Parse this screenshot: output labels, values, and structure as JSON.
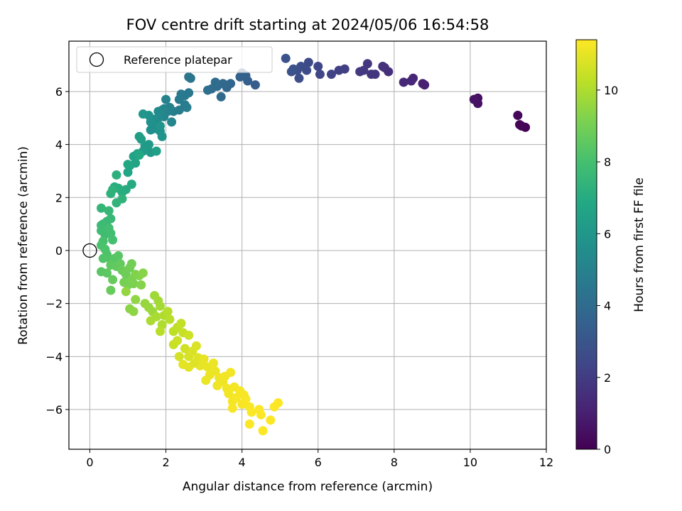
{
  "chart_data": {
    "type": "scatter",
    "title": "FOV centre drift starting at 2024/05/06 16:54:58",
    "xlabel": "Angular distance from reference (arcmin)",
    "ylabel": "Rotation from reference (arcmin)",
    "xlim": [
      -0.55,
      12
    ],
    "ylim": [
      -7.5,
      7.9
    ],
    "xticks": [
      0,
      2,
      4,
      6,
      8,
      10,
      12
    ],
    "yticks": [
      -6,
      -4,
      -2,
      0,
      2,
      4,
      6
    ],
    "grid": true,
    "legend": {
      "placement": "top-left",
      "entries": [
        "Reference platepar"
      ]
    },
    "reference_point": {
      "x": 0,
      "y": 0,
      "marker": "open-circle"
    },
    "colorbar": {
      "label": "Hours from first FF file",
      "range": [
        0,
        11.4
      ],
      "ticks": [
        0,
        2,
        4,
        6,
        8,
        10
      ],
      "colormap": "viridis"
    },
    "points": [
      {
        "x": 11.45,
        "y": 4.65,
        "c": 0.05
      },
      {
        "x": 11.35,
        "y": 4.7,
        "c": 0.1
      },
      {
        "x": 11.3,
        "y": 4.75,
        "c": 0.15
      },
      {
        "x": 11.25,
        "y": 5.1,
        "c": 0.2
      },
      {
        "x": 10.2,
        "y": 5.75,
        "c": 0.5
      },
      {
        "x": 10.2,
        "y": 5.55,
        "c": 0.55
      },
      {
        "x": 10.1,
        "y": 5.7,
        "c": 0.6
      },
      {
        "x": 8.8,
        "y": 6.25,
        "c": 1.0
      },
      {
        "x": 8.75,
        "y": 6.3,
        "c": 1.05
      },
      {
        "x": 8.5,
        "y": 6.5,
        "c": 1.2
      },
      {
        "x": 8.45,
        "y": 6.4,
        "c": 1.25
      },
      {
        "x": 8.25,
        "y": 6.35,
        "c": 1.3
      },
      {
        "x": 7.85,
        "y": 6.75,
        "c": 1.5
      },
      {
        "x": 7.75,
        "y": 6.9,
        "c": 1.55
      },
      {
        "x": 7.7,
        "y": 6.95,
        "c": 1.6
      },
      {
        "x": 7.5,
        "y": 6.65,
        "c": 1.7
      },
      {
        "x": 7.4,
        "y": 6.65,
        "c": 1.75
      },
      {
        "x": 7.3,
        "y": 7.05,
        "c": 1.8
      },
      {
        "x": 7.2,
        "y": 6.8,
        "c": 1.85
      },
      {
        "x": 7.1,
        "y": 6.75,
        "c": 1.9
      },
      {
        "x": 6.7,
        "y": 6.85,
        "c": 2.1
      },
      {
        "x": 6.55,
        "y": 6.8,
        "c": 2.15
      },
      {
        "x": 6.35,
        "y": 6.65,
        "c": 2.25
      },
      {
        "x": 6.05,
        "y": 6.65,
        "c": 2.35
      },
      {
        "x": 6.0,
        "y": 6.95,
        "c": 2.4
      },
      {
        "x": 5.75,
        "y": 7.1,
        "c": 2.55
      },
      {
        "x": 5.7,
        "y": 6.8,
        "c": 2.6
      },
      {
        "x": 5.55,
        "y": 6.95,
        "c": 2.65
      },
      {
        "x": 5.5,
        "y": 6.5,
        "c": 2.7
      },
      {
        "x": 5.45,
        "y": 6.8,
        "c": 2.75
      },
      {
        "x": 5.35,
        "y": 6.85,
        "c": 2.8
      },
      {
        "x": 5.3,
        "y": 6.75,
        "c": 2.85
      },
      {
        "x": 5.15,
        "y": 7.25,
        "c": 2.9
      },
      {
        "x": 4.35,
        "y": 6.25,
        "c": 3.3
      },
      {
        "x": 4.15,
        "y": 6.4,
        "c": 3.4
      },
      {
        "x": 4.1,
        "y": 6.6,
        "c": 3.45
      },
      {
        "x": 4.0,
        "y": 6.7,
        "c": 3.5
      },
      {
        "x": 3.95,
        "y": 6.55,
        "c": 3.55
      },
      {
        "x": 3.7,
        "y": 6.3,
        "c": 3.75
      },
      {
        "x": 3.6,
        "y": 6.15,
        "c": 3.8
      },
      {
        "x": 3.5,
        "y": 6.3,
        "c": 3.85
      },
      {
        "x": 3.45,
        "y": 5.8,
        "c": 3.9
      },
      {
        "x": 3.35,
        "y": 6.2,
        "c": 3.95
      },
      {
        "x": 3.3,
        "y": 6.35,
        "c": 4.0
      },
      {
        "x": 3.2,
        "y": 6.1,
        "c": 4.05
      },
      {
        "x": 3.1,
        "y": 6.05,
        "c": 4.1
      },
      {
        "x": 2.65,
        "y": 6.5,
        "c": 4.4
      },
      {
        "x": 2.6,
        "y": 6.55,
        "c": 4.45
      },
      {
        "x": 2.6,
        "y": 5.95,
        "c": 4.5
      },
      {
        "x": 2.5,
        "y": 5.85,
        "c": 4.55
      },
      {
        "x": 2.4,
        "y": 5.9,
        "c": 4.6
      },
      {
        "x": 2.35,
        "y": 5.7,
        "c": 4.65
      },
      {
        "x": 2.35,
        "y": 5.3,
        "c": 4.7
      },
      {
        "x": 2.5,
        "y": 5.5,
        "c": 4.75
      },
      {
        "x": 2.55,
        "y": 5.4,
        "c": 4.8
      },
      {
        "x": 2.2,
        "y": 5.25,
        "c": 4.9
      },
      {
        "x": 2.1,
        "y": 5.4,
        "c": 4.95
      },
      {
        "x": 2.05,
        "y": 5.25,
        "c": 5.0
      },
      {
        "x": 2.0,
        "y": 5.7,
        "c": 5.05
      },
      {
        "x": 1.95,
        "y": 5.35,
        "c": 5.1
      },
      {
        "x": 1.95,
        "y": 5.05,
        "c": 5.15
      },
      {
        "x": 1.9,
        "y": 5.3,
        "c": 5.2
      },
      {
        "x": 2.15,
        "y": 4.85,
        "c": 5.25
      },
      {
        "x": 1.8,
        "y": 5.25,
        "c": 5.35
      },
      {
        "x": 1.8,
        "y": 5.0,
        "c": 5.4
      },
      {
        "x": 1.75,
        "y": 4.8,
        "c": 5.45
      },
      {
        "x": 1.7,
        "y": 4.6,
        "c": 5.5
      },
      {
        "x": 1.7,
        "y": 4.95,
        "c": 5.55
      },
      {
        "x": 1.65,
        "y": 4.75,
        "c": 5.6
      },
      {
        "x": 1.6,
        "y": 4.55,
        "c": 5.65
      },
      {
        "x": 1.6,
        "y": 4.85,
        "c": 5.7
      },
      {
        "x": 1.55,
        "y": 5.1,
        "c": 5.75
      },
      {
        "x": 1.85,
        "y": 4.5,
        "c": 5.8
      },
      {
        "x": 1.9,
        "y": 4.3,
        "c": 5.85
      },
      {
        "x": 1.85,
        "y": 4.7,
        "c": 5.9
      },
      {
        "x": 1.4,
        "y": 5.15,
        "c": 5.95
      },
      {
        "x": 1.6,
        "y": 3.7,
        "c": 6.1
      },
      {
        "x": 1.55,
        "y": 4.0,
        "c": 6.15
      },
      {
        "x": 1.45,
        "y": 3.95,
        "c": 6.2
      },
      {
        "x": 1.4,
        "y": 3.75,
        "c": 6.25
      },
      {
        "x": 1.35,
        "y": 4.2,
        "c": 6.3
      },
      {
        "x": 1.3,
        "y": 4.3,
        "c": 6.35
      },
      {
        "x": 1.75,
        "y": 3.75,
        "c": 6.4
      },
      {
        "x": 1.25,
        "y": 3.65,
        "c": 6.55
      },
      {
        "x": 1.15,
        "y": 3.55,
        "c": 6.6
      },
      {
        "x": 1.2,
        "y": 3.3,
        "c": 6.65
      },
      {
        "x": 1.05,
        "y": 3.2,
        "c": 6.7
      },
      {
        "x": 1.0,
        "y": 2.95,
        "c": 6.75
      },
      {
        "x": 1.0,
        "y": 3.25,
        "c": 6.8
      },
      {
        "x": 1.3,
        "y": 3.6,
        "c": 6.85
      },
      {
        "x": 1.1,
        "y": 2.5,
        "c": 6.95
      },
      {
        "x": 0.95,
        "y": 2.3,
        "c": 7.0
      },
      {
        "x": 0.85,
        "y": 2.2,
        "c": 7.05
      },
      {
        "x": 0.75,
        "y": 2.35,
        "c": 7.1
      },
      {
        "x": 0.65,
        "y": 2.4,
        "c": 7.15
      },
      {
        "x": 0.7,
        "y": 2.85,
        "c": 7.2
      },
      {
        "x": 0.55,
        "y": 2.15,
        "c": 7.25
      },
      {
        "x": 0.6,
        "y": 2.3,
        "c": 7.3
      },
      {
        "x": 0.85,
        "y": 1.95,
        "c": 7.35
      },
      {
        "x": 0.7,
        "y": 1.8,
        "c": 7.4
      },
      {
        "x": 0.3,
        "y": 1.6,
        "c": 7.5
      },
      {
        "x": 0.5,
        "y": 1.5,
        "c": 7.55
      },
      {
        "x": 0.55,
        "y": 1.2,
        "c": 7.6
      },
      {
        "x": 0.45,
        "y": 1.1,
        "c": 7.65
      },
      {
        "x": 0.35,
        "y": 1.0,
        "c": 7.7
      },
      {
        "x": 0.3,
        "y": 0.95,
        "c": 7.75
      },
      {
        "x": 0.3,
        "y": 0.75,
        "c": 7.8
      },
      {
        "x": 0.4,
        "y": 0.6,
        "c": 7.85
      },
      {
        "x": 0.5,
        "y": 0.85,
        "c": 7.9
      },
      {
        "x": 0.55,
        "y": 0.65,
        "c": 7.95
      },
      {
        "x": 0.6,
        "y": 0.4,
        "c": 8.0
      },
      {
        "x": 0.35,
        "y": 0.35,
        "c": 8.05
      },
      {
        "x": 0.3,
        "y": 0.2,
        "c": 8.1
      },
      {
        "x": 0.4,
        "y": 0.05,
        "c": 8.15
      },
      {
        "x": 0.45,
        "y": -0.15,
        "c": 8.2
      },
      {
        "x": 0.35,
        "y": -0.3,
        "c": 8.25
      },
      {
        "x": 0.55,
        "y": -0.35,
        "c": 8.3
      },
      {
        "x": 0.65,
        "y": -0.3,
        "c": 8.35
      },
      {
        "x": 0.75,
        "y": -0.2,
        "c": 8.4
      },
      {
        "x": 0.3,
        "y": -0.8,
        "c": 8.45
      },
      {
        "x": 0.45,
        "y": -0.85,
        "c": 8.5
      },
      {
        "x": 0.55,
        "y": -0.55,
        "c": 8.55
      },
      {
        "x": 0.7,
        "y": -0.6,
        "c": 8.6
      },
      {
        "x": 0.8,
        "y": -0.5,
        "c": 8.65
      },
      {
        "x": 0.6,
        "y": -1.1,
        "c": 8.7
      },
      {
        "x": 0.55,
        "y": -1.5,
        "c": 8.75
      },
      {
        "x": 0.85,
        "y": -0.75,
        "c": 8.8
      },
      {
        "x": 0.95,
        "y": -0.9,
        "c": 8.85
      },
      {
        "x": 1.05,
        "y": -0.65,
        "c": 8.9
      },
      {
        "x": 1.1,
        "y": -0.5,
        "c": 8.95
      },
      {
        "x": 0.9,
        "y": -1.2,
        "c": 9.0
      },
      {
        "x": 1.0,
        "y": -1.3,
        "c": 9.05
      },
      {
        "x": 1.1,
        "y": -1.1,
        "c": 9.1
      },
      {
        "x": 1.15,
        "y": -1.25,
        "c": 9.15
      },
      {
        "x": 1.2,
        "y": -0.9,
        "c": 9.2
      },
      {
        "x": 1.3,
        "y": -0.95,
        "c": 9.25
      },
      {
        "x": 1.35,
        "y": -1.3,
        "c": 9.3
      },
      {
        "x": 1.4,
        "y": -0.85,
        "c": 9.35
      },
      {
        "x": 1.05,
        "y": -2.2,
        "c": 9.4
      },
      {
        "x": 1.15,
        "y": -2.3,
        "c": 9.45
      },
      {
        "x": 1.2,
        "y": -1.85,
        "c": 9.5
      },
      {
        "x": 0.95,
        "y": -1.55,
        "c": 9.55
      },
      {
        "x": 1.45,
        "y": -2.0,
        "c": 9.6
      },
      {
        "x": 1.55,
        "y": -2.15,
        "c": 9.65
      },
      {
        "x": 1.65,
        "y": -2.3,
        "c": 9.7
      },
      {
        "x": 1.7,
        "y": -1.7,
        "c": 9.75
      },
      {
        "x": 1.8,
        "y": -1.9,
        "c": 9.8
      },
      {
        "x": 1.85,
        "y": -2.1,
        "c": 9.85
      },
      {
        "x": 1.75,
        "y": -2.5,
        "c": 9.9
      },
      {
        "x": 1.6,
        "y": -2.65,
        "c": 9.95
      },
      {
        "x": 1.9,
        "y": -2.8,
        "c": 10.0
      },
      {
        "x": 1.95,
        "y": -2.45,
        "c": 10.05
      },
      {
        "x": 2.05,
        "y": -2.3,
        "c": 10.1
      },
      {
        "x": 2.1,
        "y": -2.6,
        "c": 10.15
      },
      {
        "x": 1.85,
        "y": -3.05,
        "c": 10.2
      },
      {
        "x": 2.2,
        "y": -3.05,
        "c": 10.25
      },
      {
        "x": 2.3,
        "y": -2.9,
        "c": 10.3
      },
      {
        "x": 2.4,
        "y": -2.75,
        "c": 10.35
      },
      {
        "x": 2.45,
        "y": -3.1,
        "c": 10.4
      },
      {
        "x": 2.2,
        "y": -3.55,
        "c": 10.45
      },
      {
        "x": 2.3,
        "y": -3.4,
        "c": 10.5
      },
      {
        "x": 2.6,
        "y": -3.2,
        "c": 10.55
      },
      {
        "x": 2.5,
        "y": -3.7,
        "c": 10.6
      },
      {
        "x": 2.35,
        "y": -4.0,
        "c": 10.65
      },
      {
        "x": 2.6,
        "y": -4.0,
        "c": 10.7
      },
      {
        "x": 2.7,
        "y": -3.8,
        "c": 10.75
      },
      {
        "x": 2.8,
        "y": -3.6,
        "c": 10.8
      },
      {
        "x": 2.85,
        "y": -4.05,
        "c": 10.85
      },
      {
        "x": 2.6,
        "y": -4.4,
        "c": 10.9
      },
      {
        "x": 2.45,
        "y": -4.3,
        "c": 10.95
      },
      {
        "x": 2.9,
        "y": -4.35,
        "c": 11.0
      },
      {
        "x": 3.0,
        "y": -4.1,
        "c": 11.02
      },
      {
        "x": 3.1,
        "y": -4.4,
        "c": 11.05
      },
      {
        "x": 3.15,
        "y": -4.7,
        "c": 11.08
      },
      {
        "x": 3.3,
        "y": -4.55,
        "c": 11.1
      },
      {
        "x": 3.4,
        "y": -4.8,
        "c": 11.12
      },
      {
        "x": 3.35,
        "y": -5.1,
        "c": 11.14
      },
      {
        "x": 3.5,
        "y": -4.95,
        "c": 11.16
      },
      {
        "x": 3.6,
        "y": -5.2,
        "c": 11.18
      },
      {
        "x": 3.7,
        "y": -4.6,
        "c": 11.2
      },
      {
        "x": 3.65,
        "y": -5.4,
        "c": 11.22
      },
      {
        "x": 3.8,
        "y": -5.15,
        "c": 11.24
      },
      {
        "x": 3.75,
        "y": -5.7,
        "c": 11.26
      },
      {
        "x": 3.85,
        "y": -5.55,
        "c": 11.28
      },
      {
        "x": 3.95,
        "y": -5.3,
        "c": 11.3
      },
      {
        "x": 4.0,
        "y": -5.8,
        "c": 11.31
      },
      {
        "x": 4.1,
        "y": -5.6,
        "c": 11.32
      },
      {
        "x": 4.2,
        "y": -5.9,
        "c": 11.33
      },
      {
        "x": 4.25,
        "y": -6.1,
        "c": 11.34
      },
      {
        "x": 4.2,
        "y": -6.55,
        "c": 11.35
      },
      {
        "x": 4.45,
        "y": -6.0,
        "c": 11.36
      },
      {
        "x": 4.5,
        "y": -6.2,
        "c": 11.37
      },
      {
        "x": 4.55,
        "y": -6.8,
        "c": 11.38
      },
      {
        "x": 4.75,
        "y": -6.4,
        "c": 11.39
      },
      {
        "x": 4.85,
        "y": -5.9,
        "c": 11.39
      },
      {
        "x": 4.95,
        "y": -5.75,
        "c": 11.4
      },
      {
        "x": 3.75,
        "y": -5.95,
        "c": 11.3
      },
      {
        "x": 3.05,
        "y": -4.9,
        "c": 11.06
      },
      {
        "x": 2.75,
        "y": -4.25,
        "c": 10.88
      },
      {
        "x": 3.25,
        "y": -4.25,
        "c": 11.1
      },
      {
        "x": 3.55,
        "y": -4.75,
        "c": 11.18
      },
      {
        "x": 4.05,
        "y": -5.45,
        "c": 11.3
      }
    ]
  }
}
